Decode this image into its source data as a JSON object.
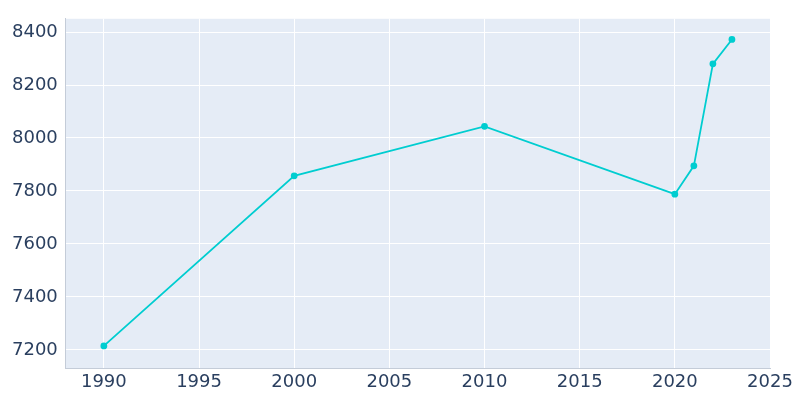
{
  "chart_data": {
    "type": "line",
    "x": [
      1990,
      2000,
      2010,
      2020,
      2021,
      2022,
      2023
    ],
    "values": [
      7215,
      7857,
      8044,
      7788,
      7895,
      8280,
      8372
    ],
    "color": "#00cdd0",
    "marker": "circle",
    "xlim": [
      1988,
      2025
    ],
    "xticks": [
      1990,
      1995,
      2000,
      2005,
      2010,
      2015,
      2020,
      2025
    ],
    "ylim": [
      7130,
      8450
    ],
    "yticks": [
      7200,
      7400,
      7600,
      7800,
      8000,
      8200,
      8400
    ],
    "grid": true
  }
}
